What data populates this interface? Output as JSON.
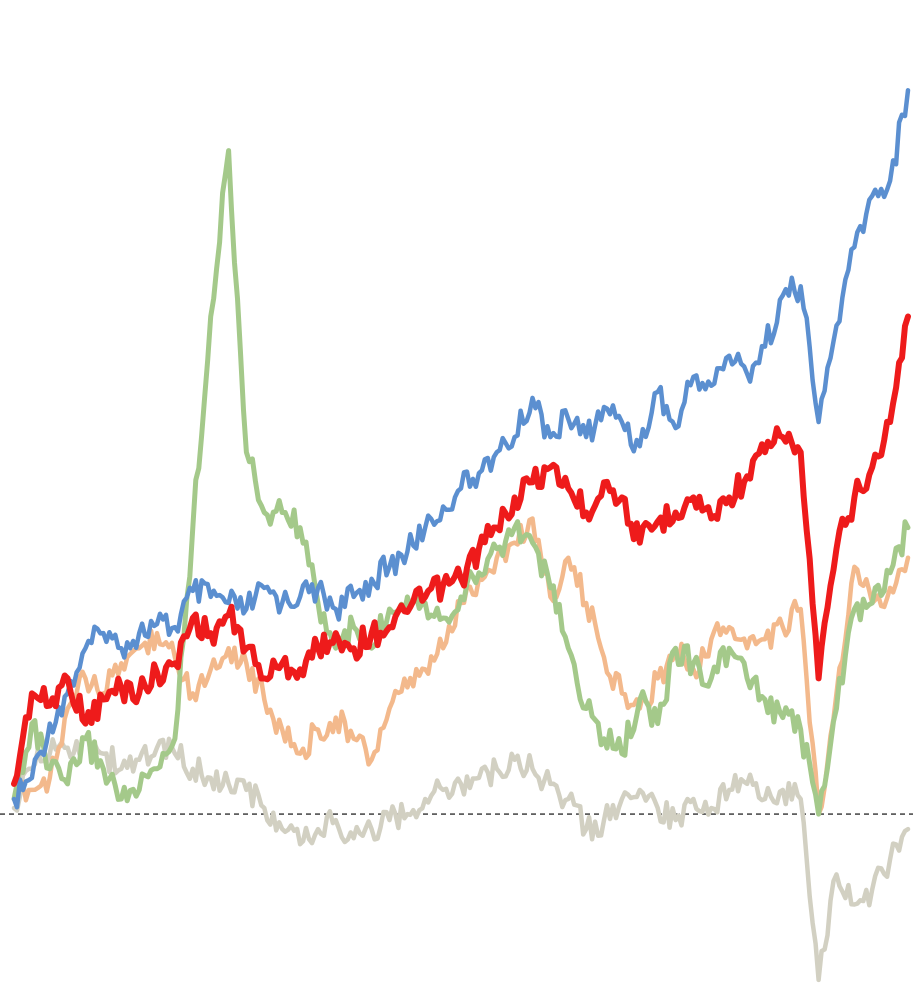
{
  "chart_data": {
    "type": "line",
    "title": "",
    "xlabel": "",
    "ylabel": "",
    "grid": false,
    "legend": "none",
    "ylim": [
      -0.6,
      2.6
    ],
    "baseline": {
      "value": 0,
      "style": "dashed",
      "color": "#000000"
    },
    "x": [
      0,
      2,
      4,
      6,
      8,
      10,
      12,
      14,
      16,
      18,
      20,
      22,
      24,
      26,
      28,
      30,
      32,
      34,
      36,
      38,
      40,
      42,
      44,
      46,
      48,
      50,
      52,
      54,
      56,
      58,
      60,
      62,
      64,
      66,
      68,
      70,
      72,
      74,
      76,
      78,
      80,
      82,
      84,
      86,
      88,
      90,
      92,
      94,
      96,
      98,
      100
    ],
    "series": [
      {
        "color": "#5b8fd0",
        "values": [
          0.05,
          0.12,
          0.3,
          0.4,
          0.55,
          0.6,
          0.55,
          0.6,
          0.63,
          0.62,
          0.74,
          0.72,
          0.7,
          0.68,
          0.75,
          0.7,
          0.72,
          0.75,
          0.68,
          0.72,
          0.78,
          0.82,
          0.87,
          0.95,
          1.02,
          1.08,
          1.13,
          1.2,
          1.25,
          1.38,
          1.25,
          1.31,
          1.25,
          1.35,
          1.3,
          1.22,
          1.4,
          1.28,
          1.45,
          1.42,
          1.52,
          1.46,
          1.55,
          1.72,
          1.75,
          1.3,
          1.62,
          1.88,
          2.05,
          2.1,
          2.4
        ]
      },
      {
        "color": "#ee1b1b",
        "values": [
          0.1,
          0.4,
          0.36,
          0.45,
          0.3,
          0.38,
          0.42,
          0.4,
          0.47,
          0.5,
          0.65,
          0.6,
          0.66,
          0.55,
          0.45,
          0.5,
          0.48,
          0.55,
          0.6,
          0.55,
          0.6,
          0.62,
          0.67,
          0.72,
          0.76,
          0.78,
          0.88,
          0.95,
          1.05,
          1.1,
          1.15,
          1.08,
          1.0,
          1.1,
          1.05,
          0.9,
          0.97,
          1.0,
          1.05,
          0.98,
          1.05,
          1.12,
          1.2,
          1.25,
          1.2,
          0.45,
          0.88,
          1.05,
          1.15,
          1.3,
          1.65
        ]
      },
      {
        "color": "#f3b98c",
        "values": [
          0.1,
          0.08,
          0.12,
          0.35,
          0.45,
          0.4,
          0.5,
          0.55,
          0.6,
          0.52,
          0.4,
          0.48,
          0.55,
          0.5,
          0.38,
          0.28,
          0.2,
          0.28,
          0.32,
          0.25,
          0.18,
          0.35,
          0.42,
          0.48,
          0.55,
          0.7,
          0.78,
          0.85,
          0.9,
          0.98,
          0.72,
          0.85,
          0.7,
          0.52,
          0.4,
          0.35,
          0.45,
          0.55,
          0.48,
          0.58,
          0.62,
          0.55,
          0.58,
          0.62,
          0.68,
          0.0,
          0.4,
          0.82,
          0.7,
          0.75,
          0.85
        ]
      },
      {
        "color": "#a4c98a",
        "values": [
          0.05,
          0.3,
          0.15,
          0.1,
          0.25,
          0.15,
          0.05,
          0.08,
          0.15,
          0.25,
          0.95,
          1.65,
          2.2,
          1.2,
          1.0,
          1.0,
          0.95,
          0.7,
          0.55,
          0.62,
          0.55,
          0.68,
          0.72,
          0.7,
          0.65,
          0.72,
          0.8,
          0.88,
          0.95,
          0.9,
          0.75,
          0.55,
          0.35,
          0.25,
          0.2,
          0.38,
          0.3,
          0.55,
          0.5,
          0.45,
          0.55,
          0.45,
          0.38,
          0.32,
          0.28,
          0.0,
          0.35,
          0.68,
          0.7,
          0.8,
          0.95
        ]
      },
      {
        "color": "#d2d0c2",
        "values": [
          0.02,
          0.15,
          0.2,
          0.22,
          0.25,
          0.2,
          0.15,
          0.18,
          0.22,
          0.2,
          0.15,
          0.12,
          0.1,
          0.08,
          0.02,
          -0.05,
          -0.1,
          -0.05,
          -0.02,
          -0.08,
          -0.05,
          -0.02,
          0.0,
          0.05,
          0.08,
          0.1,
          0.12,
          0.15,
          0.18,
          0.15,
          0.1,
          0.05,
          -0.05,
          -0.02,
          0.05,
          0.08,
          0.02,
          -0.02,
          0.05,
          0.02,
          0.08,
          0.1,
          0.05,
          0.08,
          0.05,
          -0.55,
          -0.2,
          -0.3,
          -0.25,
          -0.15,
          -0.05
        ]
      }
    ]
  }
}
